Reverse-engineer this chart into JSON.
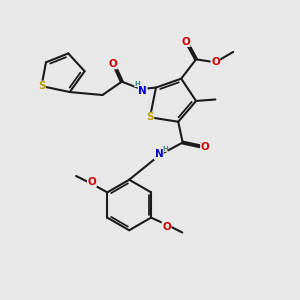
{
  "bg_color": "#e8e8e8",
  "bond_color": "#1a1a1a",
  "bond_width": 1.5,
  "colors": {
    "S": "#b8a000",
    "O": "#cc0000",
    "N": "#0000cc",
    "H": "#3a8a8a"
  },
  "font_size": 6.5
}
